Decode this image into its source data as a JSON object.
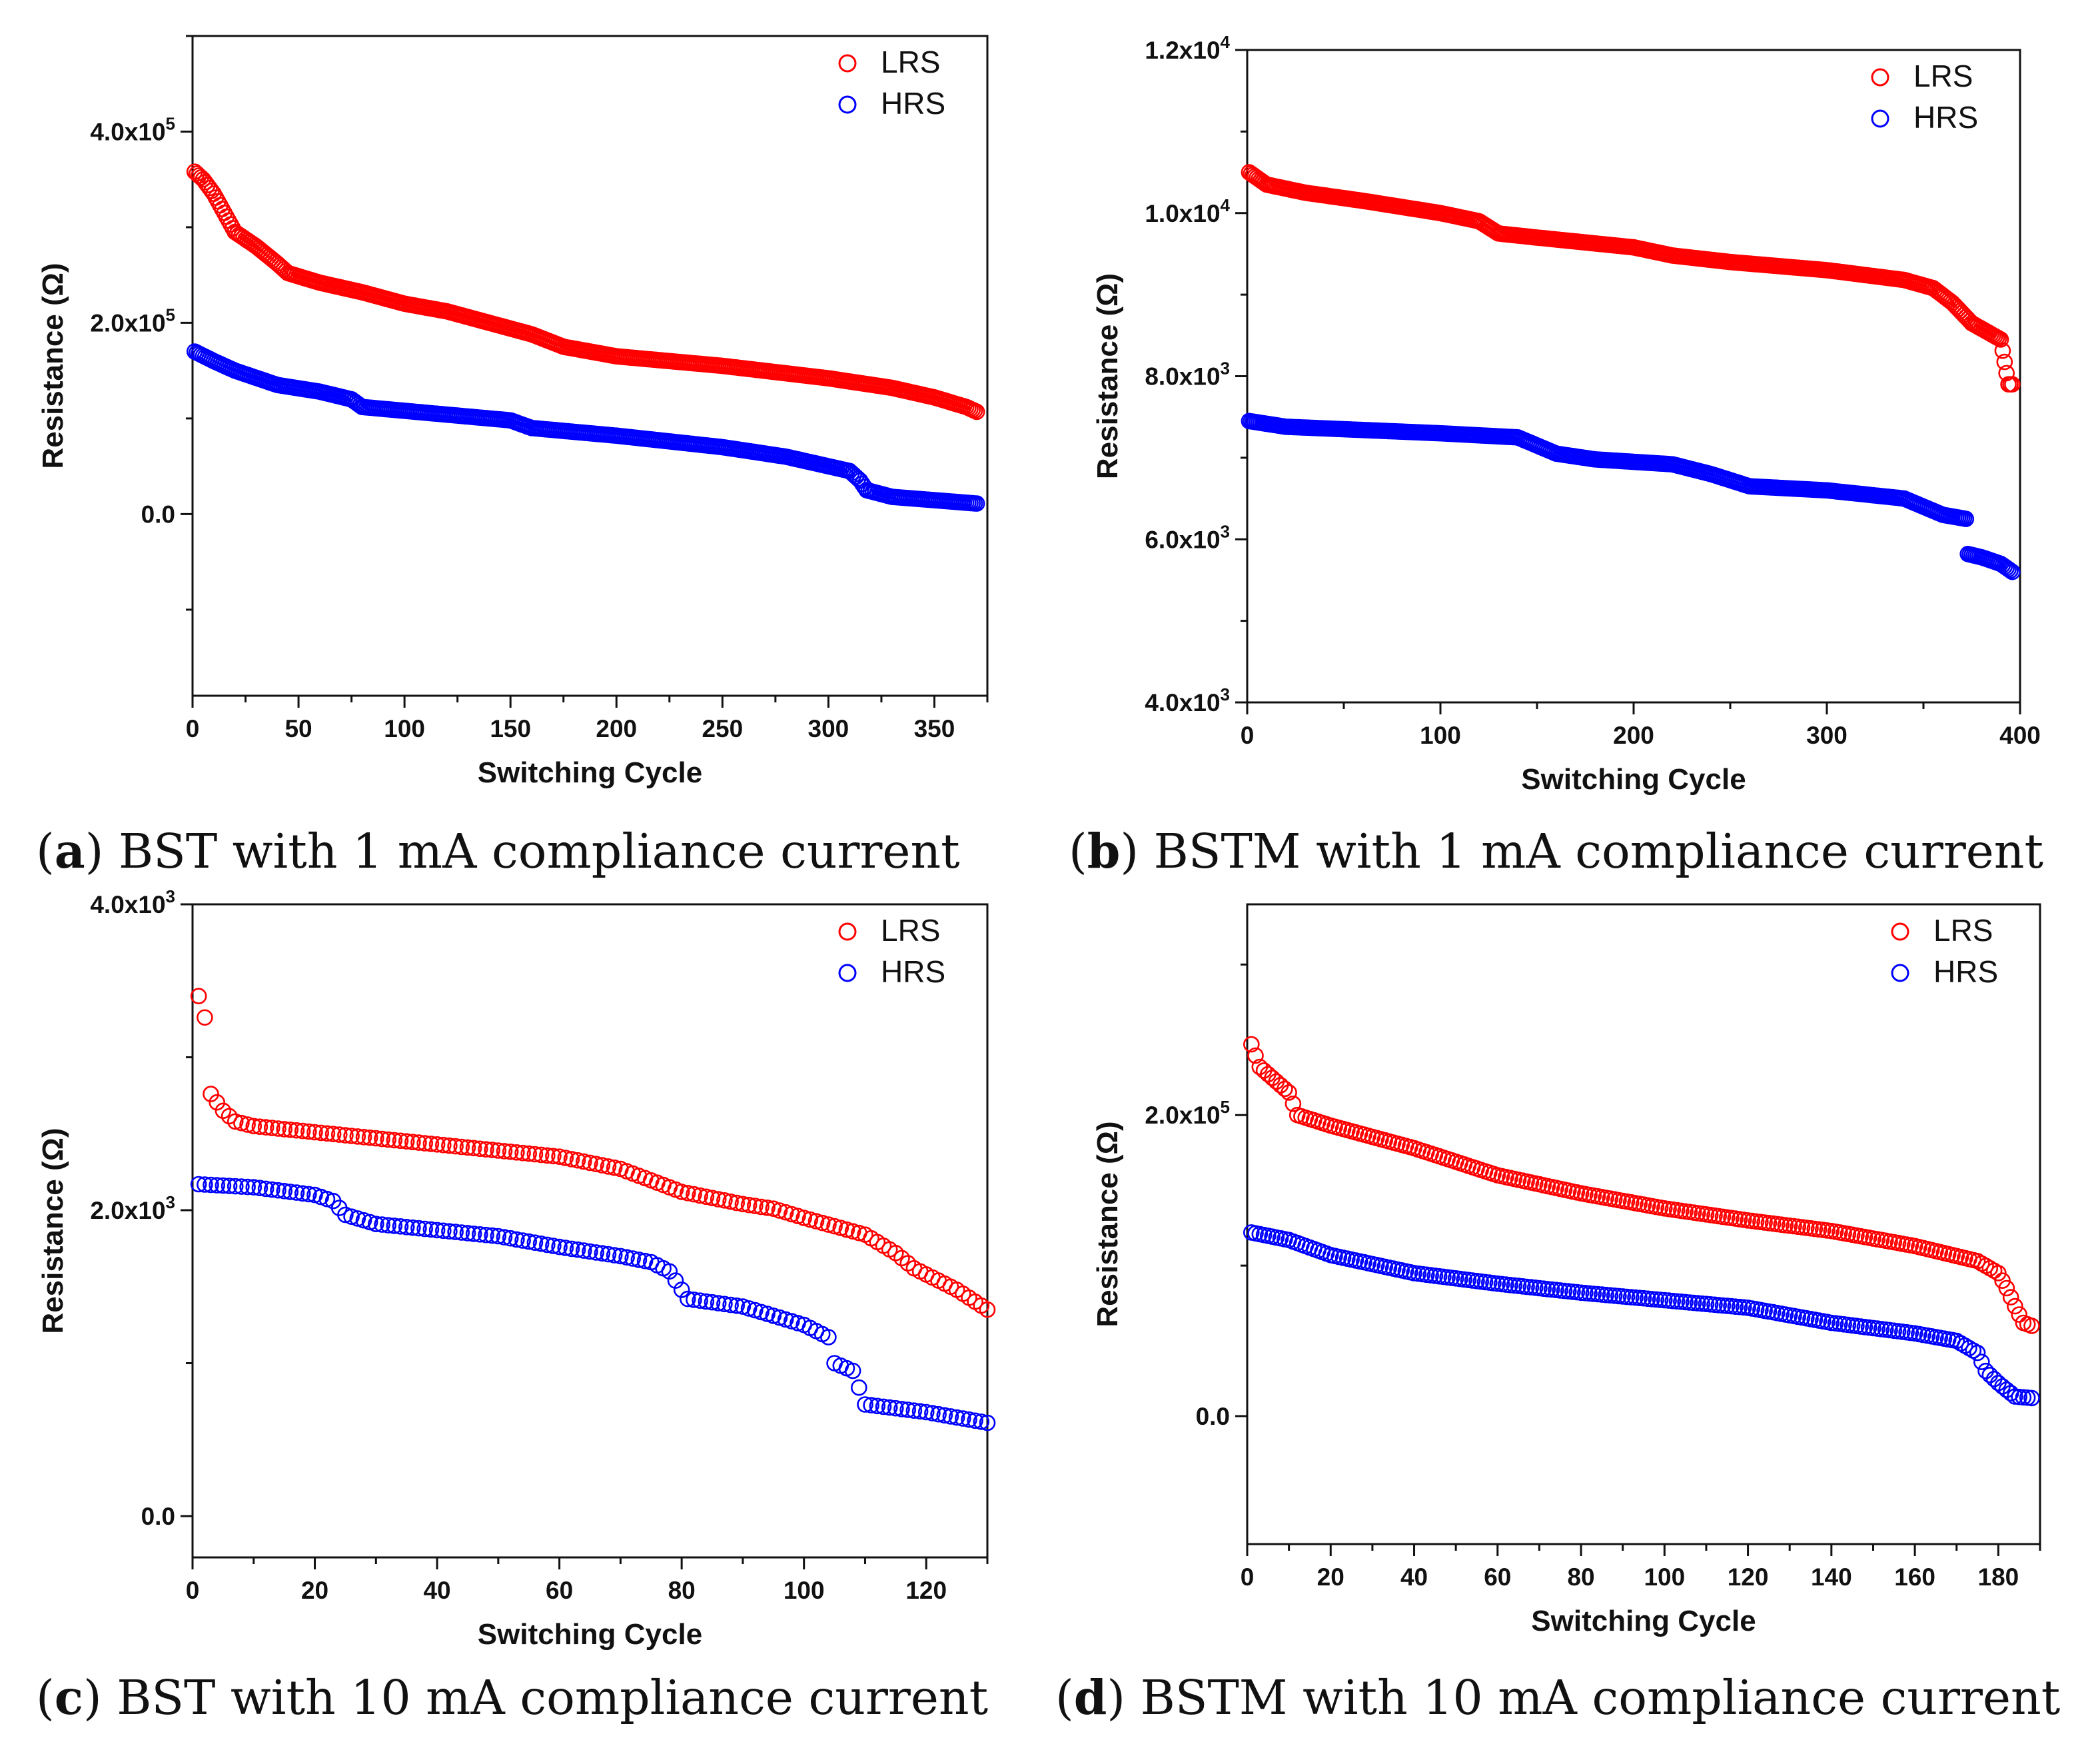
{
  "colors": {
    "LRS": "#ff0000",
    "HRS": "#0000ff"
  },
  "panels": [
    {
      "caption": {
        "letter": "a",
        "text": "BST with 1 mA compliance current"
      },
      "chart_data": {
        "type": "scatter",
        "xlabel": "Switching Cycle",
        "ylabel": "Resistance (Ω)",
        "xlim": [
          0,
          375
        ],
        "ylim": [
          -190000,
          500000
        ],
        "xticks": [
          0,
          50,
          100,
          150,
          200,
          250,
          300,
          350
        ],
        "yticks": [
          {
            "value": 0,
            "mant": "0.0",
            "exp": ""
          },
          {
            "value": 200000,
            "mant": "2.0x10",
            "exp": "5"
          },
          {
            "value": 400000,
            "mant": "4.0x10",
            "exp": "5"
          }
        ],
        "legend": "top-right",
        "n": 370,
        "series": [
          {
            "name": "LRS",
            "knots": [
              [
                1,
                358000
              ],
              [
                5,
                350000
              ],
              [
                10,
                335000
              ],
              [
                15,
                315000
              ],
              [
                20,
                295000
              ],
              [
                30,
                280000
              ],
              [
                40,
                262000
              ],
              [
                45,
                252000
              ],
              [
                60,
                242000
              ],
              [
                80,
                232000
              ],
              [
                100,
                220000
              ],
              [
                120,
                212000
              ],
              [
                140,
                200000
              ],
              [
                160,
                188000
              ],
              [
                175,
                175000
              ],
              [
                200,
                165000
              ],
              [
                250,
                155000
              ],
              [
                300,
                142000
              ],
              [
                330,
                132000
              ],
              [
                350,
                122000
              ],
              [
                365,
                112000
              ],
              [
                370,
                107000
              ]
            ]
          },
          {
            "name": "HRS",
            "knots": [
              [
                1,
                170000
              ],
              [
                10,
                160000
              ],
              [
                20,
                150000
              ],
              [
                40,
                135000
              ],
              [
                60,
                128000
              ],
              [
                75,
                120000
              ],
              [
                80,
                112000
              ],
              [
                100,
                108000
              ],
              [
                150,
                98000
              ],
              [
                160,
                90000
              ],
              [
                200,
                82000
              ],
              [
                250,
                70000
              ],
              [
                280,
                60000
              ],
              [
                300,
                50000
              ],
              [
                310,
                45000
              ],
              [
                315,
                35000
              ],
              [
                318,
                25000
              ],
              [
                330,
                18000
              ],
              [
                370,
                11000
              ]
            ]
          }
        ]
      }
    },
    {
      "caption": {
        "letter": "b",
        "text": "BSTM with 1 mA compliance current"
      },
      "chart_data": {
        "type": "scatter",
        "xlabel": "Switching Cycle",
        "ylabel": "Resistance (Ω)",
        "xlim": [
          0,
          400
        ],
        "ylim": [
          4000,
          12000
        ],
        "xticks": [
          0,
          100,
          200,
          300,
          400
        ],
        "yticks": [
          {
            "value": 4000,
            "mant": "4.0x10",
            "exp": "3"
          },
          {
            "value": 6000,
            "mant": "6.0x10",
            "exp": "3"
          },
          {
            "value": 8000,
            "mant": "8.0x10",
            "exp": "3"
          },
          {
            "value": 10000,
            "mant": "1.0x10",
            "exp": "4"
          },
          {
            "value": 12000,
            "mant": "1.2x10",
            "exp": "4"
          }
        ],
        "legend": "top-right",
        "n": 396,
        "series": [
          {
            "name": "LRS",
            "knots": [
              [
                1,
                10500
              ],
              [
                10,
                10350
              ],
              [
                30,
                10250
              ],
              [
                60,
                10150
              ],
              [
                100,
                10000
              ],
              [
                120,
                9900
              ],
              [
                130,
                9750
              ],
              [
                150,
                9700
              ],
              [
                200,
                9580
              ],
              [
                220,
                9480
              ],
              [
                250,
                9400
              ],
              [
                300,
                9300
              ],
              [
                340,
                9180
              ],
              [
                355,
                9080
              ],
              [
                365,
                8900
              ],
              [
                375,
                8650
              ],
              [
                390,
                8450
              ],
              [
                394,
                7900
              ],
              [
                396,
                7900
              ]
            ]
          },
          {
            "name": "HRS",
            "knots": [
              [
                1,
                7450
              ],
              [
                20,
                7380
              ],
              [
                100,
                7300
              ],
              [
                140,
                7250
              ],
              [
                150,
                7150
              ],
              [
                160,
                7050
              ],
              [
                180,
                6980
              ],
              [
                220,
                6920
              ],
              [
                240,
                6800
              ],
              [
                260,
                6650
              ],
              [
                300,
                6600
              ],
              [
                340,
                6500
              ],
              [
                350,
                6400
              ],
              [
                360,
                6300
              ],
              [
                372,
                6250
              ],
              [
                373,
                5820
              ],
              [
                380,
                5780
              ],
              [
                390,
                5700
              ],
              [
                396,
                5600
              ]
            ]
          }
        ]
      }
    },
    {
      "caption": {
        "letter": "c",
        "text": "BST with 10 mA compliance current"
      },
      "chart_data": {
        "type": "scatter",
        "xlabel": "Switching Cycle",
        "ylabel": "Resistance (Ω)",
        "xlim": [
          0,
          130
        ],
        "ylim": [
          -270,
          4000
        ],
        "xticks": [
          0,
          20,
          40,
          60,
          80,
          100,
          120
        ],
        "yticks": [
          {
            "value": 0,
            "mant": "0.0",
            "exp": ""
          },
          {
            "value": 2000,
            "mant": "2.0x10",
            "exp": "3"
          },
          {
            "value": 4000,
            "mant": "4.0x10",
            "exp": "3"
          }
        ],
        "legend": "top-right",
        "n": 130,
        "series": [
          {
            "name": "LRS",
            "knots": [
              [
                1,
                3400
              ],
              [
                2,
                3260
              ],
              [
                3,
                2760
              ],
              [
                5,
                2650
              ],
              [
                7,
                2580
              ],
              [
                10,
                2550
              ],
              [
                20,
                2510
              ],
              [
                40,
                2430
              ],
              [
                60,
                2350
              ],
              [
                70,
                2270
              ],
              [
                80,
                2120
              ],
              [
                90,
                2040
              ],
              [
                95,
                2010
              ],
              [
                100,
                1950
              ],
              [
                110,
                1840
              ],
              [
                115,
                1720
              ],
              [
                118,
                1620
              ],
              [
                125,
                1480
              ],
              [
                130,
                1350
              ]
            ]
          },
          {
            "name": "HRS",
            "knots": [
              [
                1,
                2170
              ],
              [
                10,
                2150
              ],
              [
                20,
                2100
              ],
              [
                23,
                2060
              ],
              [
                25,
                1970
              ],
              [
                30,
                1910
              ],
              [
                40,
                1870
              ],
              [
                50,
                1830
              ],
              [
                60,
                1760
              ],
              [
                70,
                1700
              ],
              [
                75,
                1660
              ],
              [
                78,
                1600
              ],
              [
                81,
                1420
              ],
              [
                90,
                1370
              ],
              [
                100,
                1250
              ],
              [
                104,
                1170
              ],
              [
                105,
                1000
              ],
              [
                108,
                950
              ],
              [
                110,
                730
              ],
              [
                120,
                680
              ],
              [
                130,
                610
              ]
            ]
          }
        ]
      }
    },
    {
      "caption": {
        "letter": "d",
        "text": "BSTM with 10 mA compliance current"
      },
      "chart_data": {
        "type": "scatter",
        "xlabel": "Switching Cycle",
        "ylabel": "Resistance (Ω)",
        "xlim": [
          0,
          190
        ],
        "ylim": [
          -85000,
          340000
        ],
        "xticks": [
          0,
          20,
          40,
          60,
          80,
          100,
          120,
          140,
          160,
          180
        ],
        "yticks": [
          {
            "value": 0,
            "mant": "0.0",
            "exp": ""
          },
          {
            "value": 200000,
            "mant": "2.0x10",
            "exp": "5"
          }
        ],
        "legend": "top-right",
        "n": 188,
        "series": [
          {
            "name": "LRS",
            "knots": [
              [
                1,
                247000
              ],
              [
                3,
                232000
              ],
              [
                10,
                215000
              ],
              [
                12,
                200000
              ],
              [
                20,
                193000
              ],
              [
                40,
                178000
              ],
              [
                60,
                160000
              ],
              [
                80,
                148000
              ],
              [
                100,
                138000
              ],
              [
                120,
                130000
              ],
              [
                140,
                123000
              ],
              [
                160,
                113000
              ],
              [
                175,
                103000
              ],
              [
                180,
                95000
              ],
              [
                182,
                85000
              ],
              [
                184,
                73000
              ],
              [
                186,
                62000
              ],
              [
                188,
                60000
              ]
            ]
          },
          {
            "name": "HRS",
            "knots": [
              [
                1,
                122000
              ],
              [
                10,
                117000
              ],
              [
                20,
                107000
              ],
              [
                40,
                95000
              ],
              [
                60,
                88000
              ],
              [
                80,
                82000
              ],
              [
                100,
                77000
              ],
              [
                120,
                72000
              ],
              [
                140,
                62000
              ],
              [
                160,
                55000
              ],
              [
                170,
                50000
              ],
              [
                175,
                42000
              ],
              [
                177,
                30000
              ],
              [
                180,
                22000
              ],
              [
                184,
                13000
              ],
              [
                188,
                12000
              ]
            ]
          }
        ]
      }
    }
  ]
}
